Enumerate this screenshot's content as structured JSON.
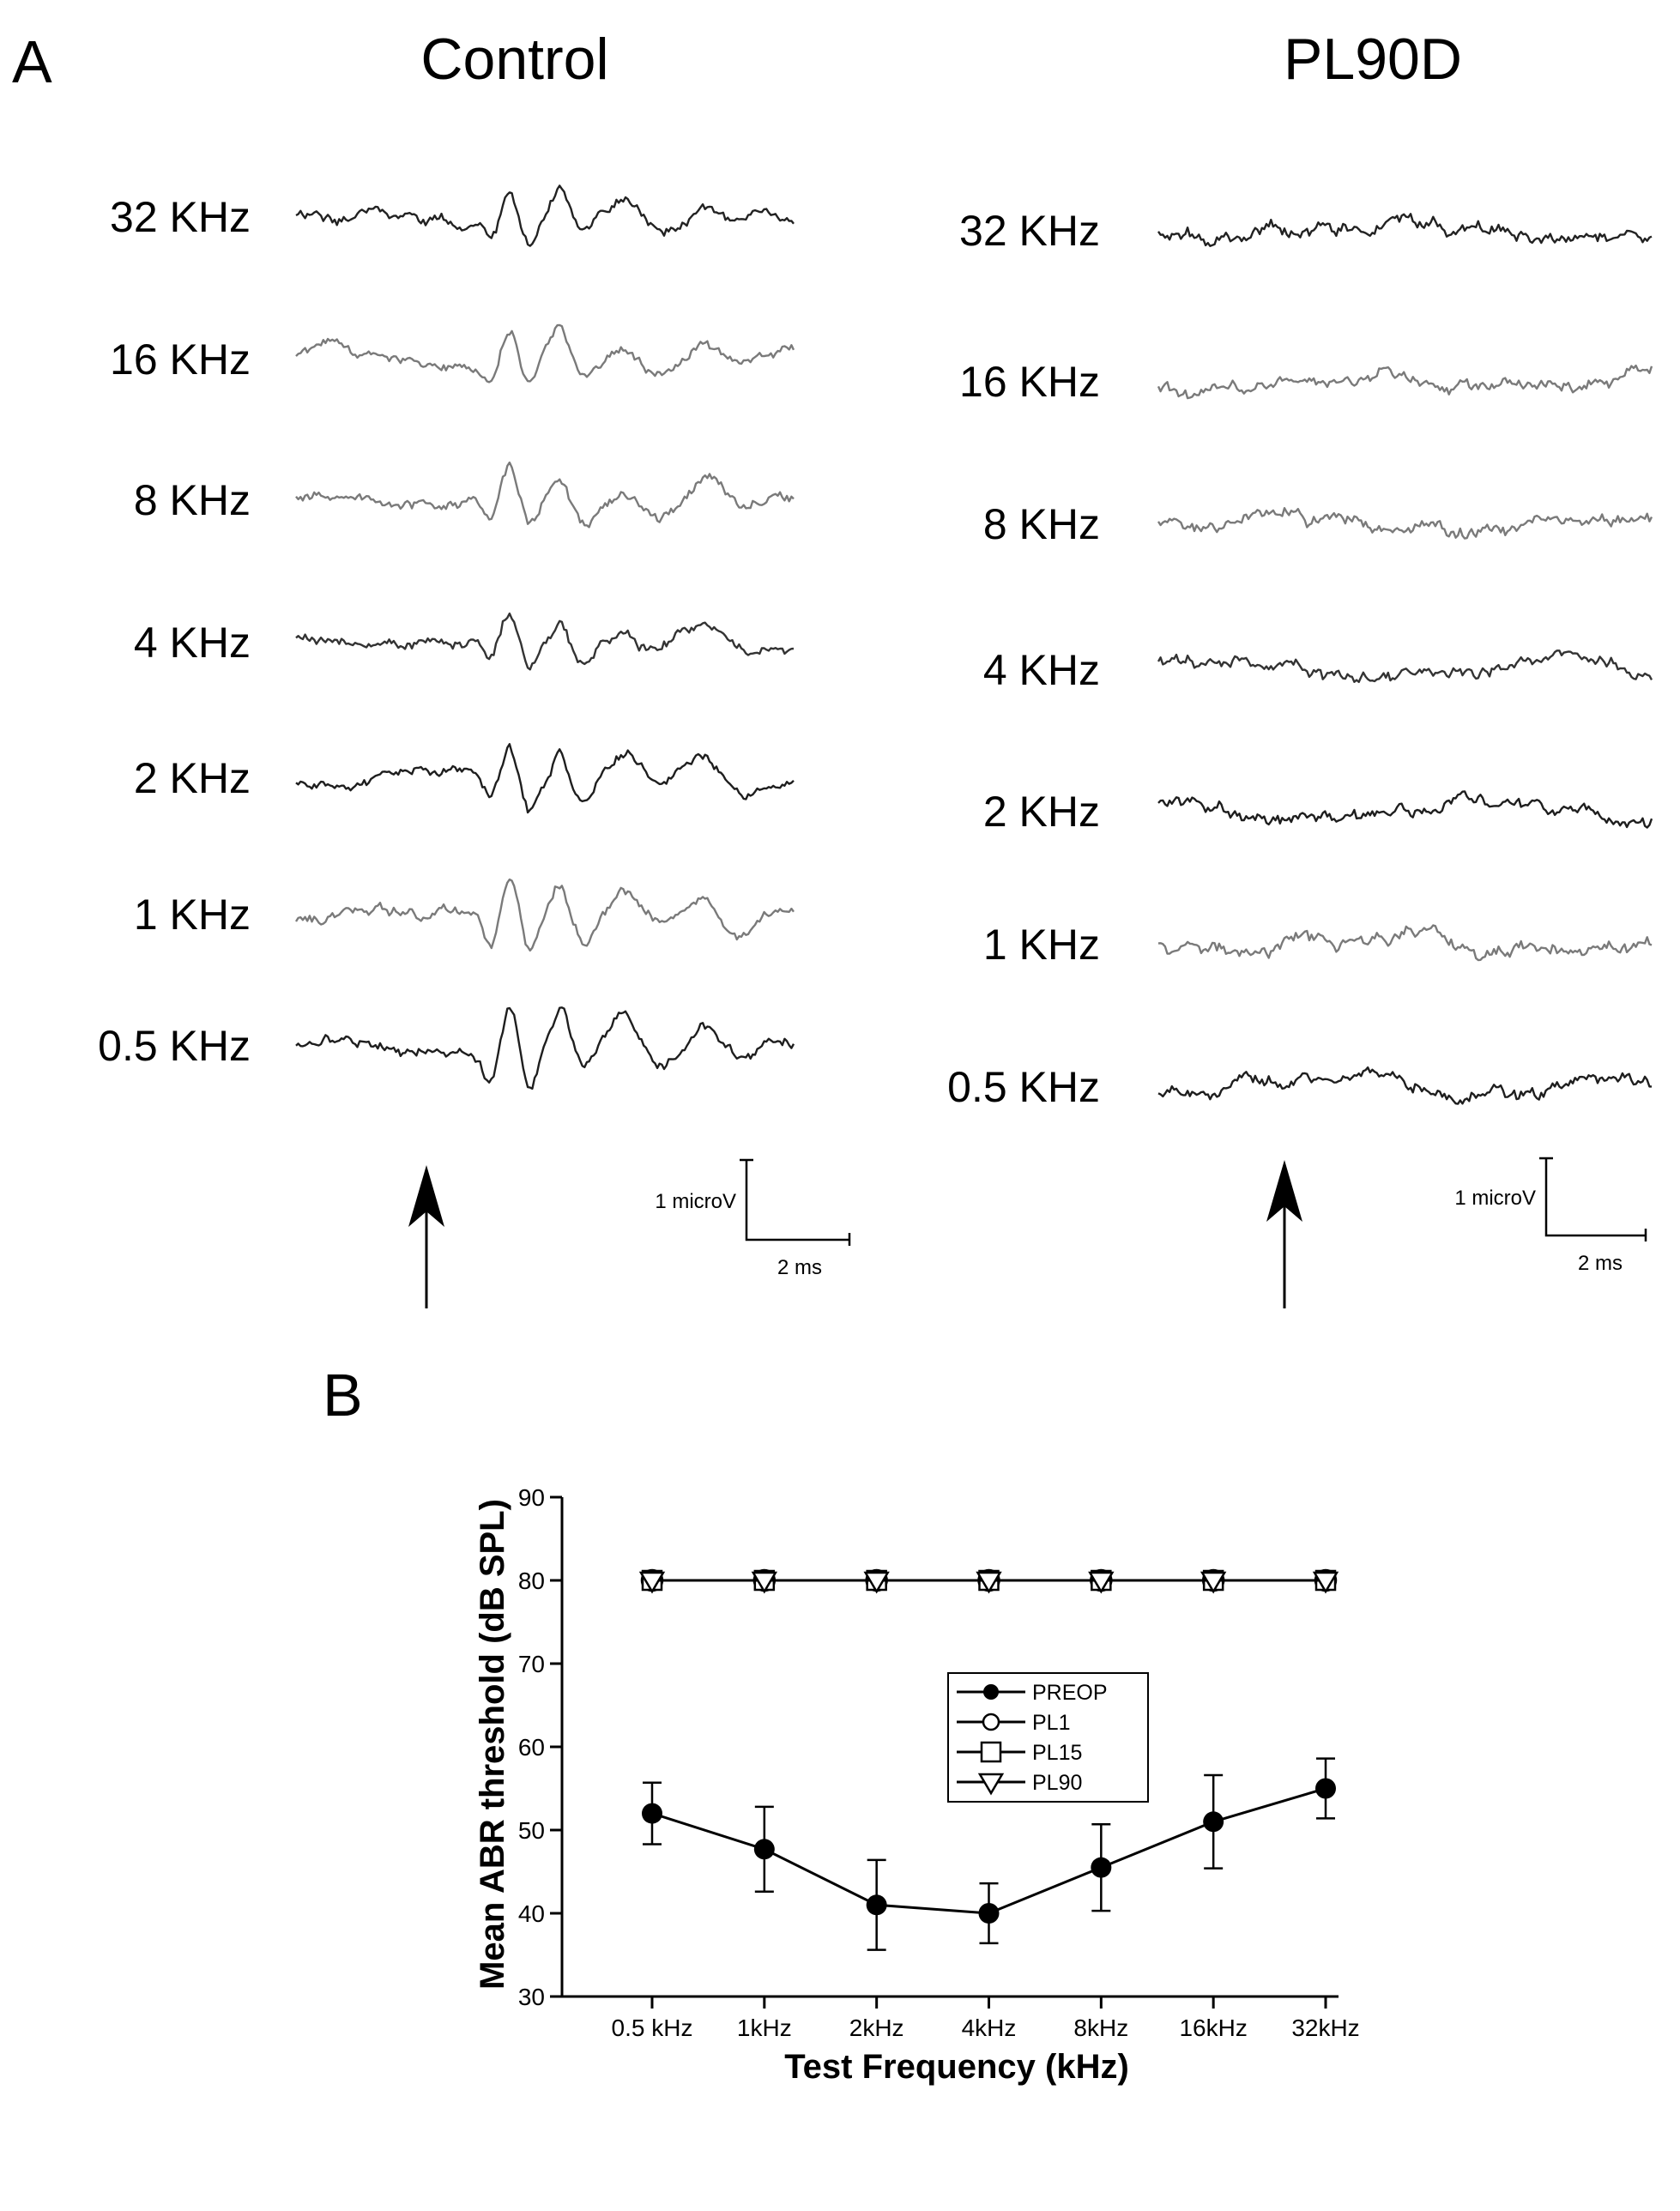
{
  "panel_a": {
    "letter": "A",
    "control": {
      "title": "Control",
      "labels": [
        "32 KHz",
        "16 KHz",
        "8 KHz",
        "4 KHz",
        "2 KHz",
        "1 KHz",
        "0.5 KHz"
      ],
      "scale_voltage": "1 microV",
      "scale_time": "2 ms"
    },
    "pl90d": {
      "title": "PL90D",
      "labels": [
        "32 KHz",
        "16 KHz",
        "8 KHz",
        "4 KHz",
        "2 KHz",
        "1 KHz",
        "0.5 KHz"
      ],
      "scale_voltage": "1 microV",
      "scale_time": "2 ms"
    },
    "trace_colors": [
      "#222222",
      "#7a7a7a",
      "#7a7a7a",
      "#333333",
      "#1e1e1e",
      "#7a7a7a",
      "#1e1e1e"
    ]
  },
  "panel_b": {
    "letter": "B"
  },
  "chart_data": {
    "type": "line",
    "categories": [
      "0.5 kHz",
      "1kHz",
      "2kHz",
      "4kHz",
      "8kHz",
      "16kHz",
      "32kHz"
    ],
    "xlabel": "Test Frequency (kHz)",
    "ylabel": "Mean ABR threshold (dB SPL)",
    "ylim": [
      30,
      90
    ],
    "yticks": [
      30,
      40,
      50,
      60,
      70,
      80,
      90
    ],
    "grid": false,
    "legend_position": "center",
    "series": [
      {
        "name": "PREOP",
        "marker": "filled-circle",
        "values": [
          52,
          47.7,
          41,
          40,
          45.5,
          51,
          55
        ],
        "error": [
          3.7,
          5.1,
          5.4,
          3.6,
          5.2,
          5.6,
          3.6
        ]
      },
      {
        "name": "PL1",
        "marker": "open-circle",
        "values": [
          80,
          80,
          80,
          80,
          80,
          80,
          80
        ]
      },
      {
        "name": "PL15",
        "marker": "open-square",
        "values": [
          80,
          80,
          80,
          80,
          80,
          80,
          80
        ]
      },
      {
        "name": "PL90",
        "marker": "open-triangle-down",
        "values": [
          80,
          80,
          80,
          80,
          80,
          80,
          80
        ]
      }
    ]
  }
}
